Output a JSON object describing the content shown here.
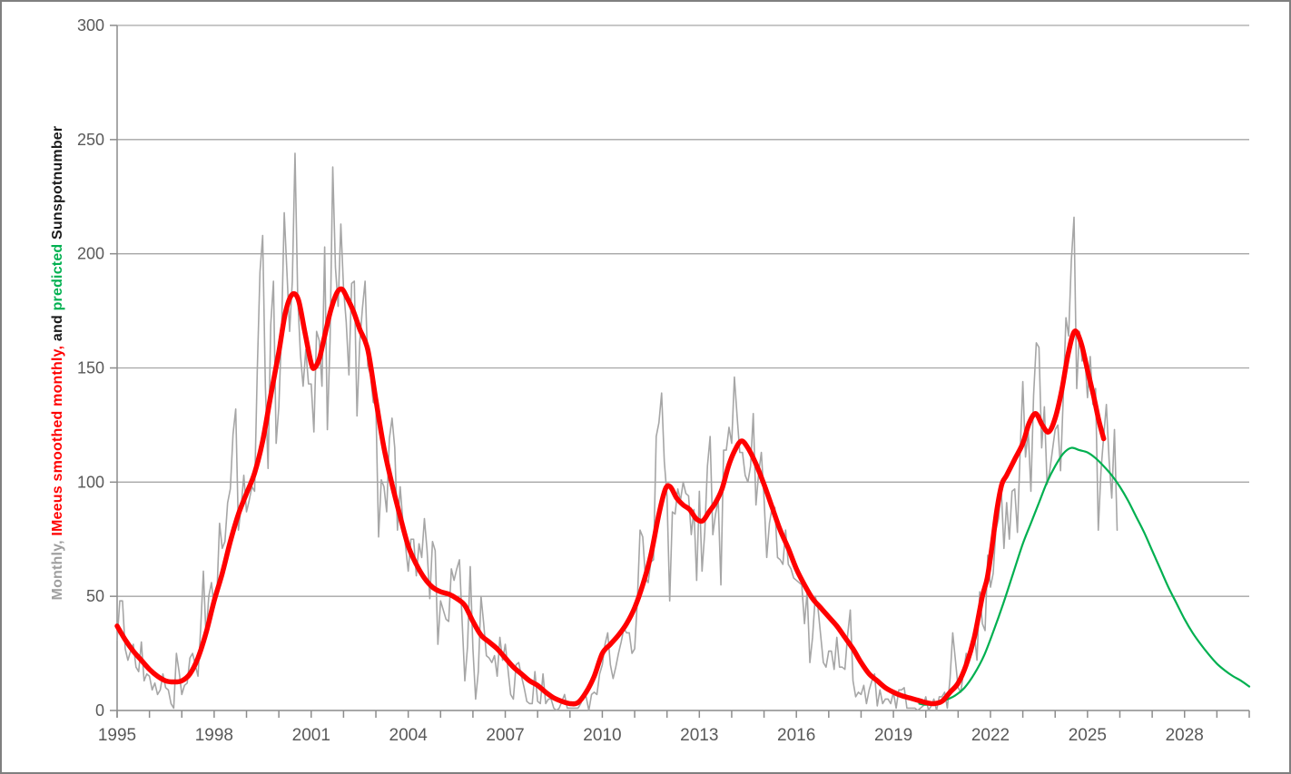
{
  "chart_data": {
    "type": "line",
    "title": "",
    "xlabel": "",
    "ylabel": "Monthly, IMeeus smoothed monthly, and predicted Sunspotnumber",
    "ylabel_segments": [
      {
        "text": "Monthly, ",
        "color": "#9e9e9e"
      },
      {
        "text": "IMeeus smoothed monthly, ",
        "color": "#ff0000"
      },
      {
        "text": "and ",
        "color": "#1a1a1a"
      },
      {
        "text": "predicted ",
        "color": "#00b050"
      },
      {
        "text": "Sunspotnumber",
        "color": "#1a1a1a"
      }
    ],
    "grid": true,
    "legend_position": "none (legend encoded in y-axis label colors)",
    "x_axis": {
      "min": 1995,
      "max": 2030,
      "tick_step": 1,
      "label_step": 3,
      "tick_labels": [
        "1995",
        "1998",
        "2001",
        "2004",
        "2007",
        "2010",
        "2013",
        "2016",
        "2019",
        "2022",
        "2025",
        "2028"
      ]
    },
    "y_axis": {
      "min": 0,
      "max": 300,
      "tick_step": 50,
      "tick_labels": [
        "0",
        "50",
        "100",
        "150",
        "200",
        "250",
        "300"
      ]
    },
    "colors": {
      "monthly": "#a6a6a6",
      "smoothed": "#ff0000",
      "predicted": "#00b050",
      "grid": "#a6a6a6",
      "axis": "#8c8c8c",
      "tick_text": "#595959"
    },
    "series": [
      {
        "name": "Monthly sunspot number",
        "color": "#a6a6a6",
        "width": 1.6,
        "smooth": false,
        "start_year": 1995.0,
        "step_years": 0.0833333,
        "values": [
          31,
          48,
          48,
          27,
          22,
          26,
          29,
          19,
          17,
          30,
          13,
          16,
          15,
          9,
          12,
          7,
          9,
          16,
          10,
          9,
          3,
          1,
          25,
          17,
          7,
          11,
          12,
          23,
          25,
          20,
          15,
          36,
          61,
          32,
          50,
          56,
          45,
          50,
          82,
          71,
          74,
          91,
          97,
          121,
          132,
          79,
          89,
          103,
          87,
          92,
          98,
          96,
          149,
          192,
          208,
          142,
          106,
          169,
          188,
          117,
          133,
          166,
          218,
          192,
          166,
          188,
          244,
          181,
          156,
          142,
          158,
          143,
          143,
          122,
          166,
          162,
          142,
          203,
          123,
          162,
          238,
          194,
          177,
          213,
          185,
          170,
          147,
          187,
          188,
          129,
          161,
          176,
          188,
          151,
          147,
          135,
          134,
          76,
          101,
          98,
          87,
          119,
          128,
          115,
          79,
          98,
          83,
          72,
          61,
          75,
          75,
          59,
          73,
          67,
          84,
          70,
          49,
          74,
          70,
          29,
          48,
          44,
          40,
          39,
          62,
          57,
          62,
          66,
          39,
          13,
          28,
          63,
          27,
          5,
          17,
          50,
          38,
          24,
          23,
          21,
          24,
          15,
          32,
          22,
          29,
          18,
          7,
          5,
          20,
          21,
          15,
          10,
          4,
          3,
          3,
          17,
          4,
          3,
          16,
          3,
          5,
          5,
          1,
          0,
          1,
          4,
          7,
          1,
          1,
          1,
          1,
          1,
          3,
          6,
          6,
          0,
          7,
          8,
          7,
          16,
          20,
          29,
          34,
          20,
          14,
          19,
          25,
          30,
          36,
          34,
          34,
          25,
          27,
          48,
          79,
          76,
          58,
          56,
          65,
          66,
          120,
          126,
          139,
          109,
          94,
          48,
          87,
          86,
          97,
          92,
          100,
          95,
          94,
          77,
          88,
          57,
          96,
          61,
          78,
          107,
          120,
          77,
          86,
          92,
          55,
          114,
          114,
          124,
          117,
          146,
          129,
          113,
          113,
          103,
          100,
          107,
          130,
          90,
          104,
          113,
          93,
          67,
          82,
          89,
          89,
          67,
          66,
          64,
          79,
          64,
          62,
          58,
          57,
          56,
          55,
          38,
          52,
          21,
          32,
          50,
          45,
          33,
          21,
          19,
          26,
          26,
          18,
          32,
          19,
          19,
          18,
          33,
          44,
          13,
          6,
          8,
          7,
          11,
          3,
          9,
          13,
          16,
          2,
          9,
          3,
          5,
          5,
          3,
          8,
          1,
          9,
          9,
          10,
          1,
          1,
          1,
          1,
          0,
          1,
          2,
          6,
          0,
          2,
          5,
          0,
          6,
          6,
          8,
          1,
          14,
          34,
          22,
          10,
          8,
          17,
          25,
          21,
          25,
          34,
          22,
          52,
          38,
          35,
          68,
          54,
          60,
          79,
          84,
          97,
          71,
          91,
          75,
          96,
          97,
          78,
          113,
          144,
          111,
          123,
          96,
          138,
          161,
          159,
          115,
          133,
          99,
          105,
          114,
          123,
          125,
          105,
          137,
          172,
          164,
          197,
          216,
          141,
          166,
          153,
          155,
          137,
          155,
          134,
          141,
          79,
          105,
          120,
          134,
          110,
          93,
          123,
          79
        ]
      },
      {
        "name": "Meeus smoothed monthly sunspot number",
        "color": "#ff0000",
        "width": 5.5,
        "smooth": true,
        "points": [
          [
            1995.0,
            37
          ],
          [
            1995.25,
            31
          ],
          [
            1995.5,
            26
          ],
          [
            1995.75,
            22
          ],
          [
            1996.0,
            18
          ],
          [
            1996.25,
            15
          ],
          [
            1996.5,
            13
          ],
          [
            1996.75,
            12.5
          ],
          [
            1997.0,
            13
          ],
          [
            1997.25,
            16
          ],
          [
            1997.5,
            23
          ],
          [
            1997.75,
            34
          ],
          [
            1998.0,
            48
          ],
          [
            1998.25,
            60
          ],
          [
            1998.5,
            74
          ],
          [
            1998.75,
            86
          ],
          [
            1999.0,
            95
          ],
          [
            1999.25,
            104
          ],
          [
            1999.5,
            118
          ],
          [
            1999.75,
            138
          ],
          [
            2000.0,
            157
          ],
          [
            2000.2,
            174
          ],
          [
            2000.4,
            182
          ],
          [
            2000.6,
            180
          ],
          [
            2000.8,
            166
          ],
          [
            2001.0,
            152
          ],
          [
            2001.1,
            150
          ],
          [
            2001.25,
            154
          ],
          [
            2001.4,
            163
          ],
          [
            2001.6,
            175
          ],
          [
            2001.8,
            183
          ],
          [
            2001.95,
            184.5
          ],
          [
            2002.1,
            181
          ],
          [
            2002.3,
            175
          ],
          [
            2002.5,
            167
          ],
          [
            2002.75,
            158
          ],
          [
            2003.0,
            136
          ],
          [
            2003.25,
            115
          ],
          [
            2003.5,
            99
          ],
          [
            2003.75,
            85
          ],
          [
            2004.0,
            72
          ],
          [
            2004.25,
            64
          ],
          [
            2004.5,
            58
          ],
          [
            2004.75,
            54
          ],
          [
            2005.0,
            52
          ],
          [
            2005.25,
            51
          ],
          [
            2005.5,
            49
          ],
          [
            2005.75,
            46
          ],
          [
            2006.0,
            39
          ],
          [
            2006.25,
            33
          ],
          [
            2006.5,
            30
          ],
          [
            2006.75,
            27
          ],
          [
            2007.0,
            23
          ],
          [
            2007.25,
            19
          ],
          [
            2007.5,
            16
          ],
          [
            2007.75,
            13
          ],
          [
            2008.0,
            11
          ],
          [
            2008.25,
            8
          ],
          [
            2008.5,
            5.5
          ],
          [
            2008.75,
            4
          ],
          [
            2009.0,
            3
          ],
          [
            2009.25,
            3.5
          ],
          [
            2009.5,
            8
          ],
          [
            2009.75,
            15
          ],
          [
            2010.0,
            25
          ],
          [
            2010.25,
            29
          ],
          [
            2010.5,
            33
          ],
          [
            2010.75,
            38
          ],
          [
            2011.0,
            45
          ],
          [
            2011.25,
            55
          ],
          [
            2011.5,
            68
          ],
          [
            2011.75,
            86
          ],
          [
            2011.95,
            97
          ],
          [
            2012.1,
            98
          ],
          [
            2012.3,
            93
          ],
          [
            2012.5,
            90
          ],
          [
            2012.7,
            88
          ],
          [
            2012.9,
            84
          ],
          [
            2013.1,
            83
          ],
          [
            2013.3,
            87
          ],
          [
            2013.5,
            91
          ],
          [
            2013.7,
            97
          ],
          [
            2013.9,
            107
          ],
          [
            2014.1,
            114
          ],
          [
            2014.3,
            118
          ],
          [
            2014.5,
            115
          ],
          [
            2014.75,
            108
          ],
          [
            2015.0,
            99
          ],
          [
            2015.25,
            89
          ],
          [
            2015.5,
            79
          ],
          [
            2015.75,
            71
          ],
          [
            2016.0,
            62
          ],
          [
            2016.25,
            55
          ],
          [
            2016.5,
            49
          ],
          [
            2016.75,
            45
          ],
          [
            2017.0,
            41
          ],
          [
            2017.25,
            37
          ],
          [
            2017.5,
            32
          ],
          [
            2017.75,
            27
          ],
          [
            2018.0,
            21
          ],
          [
            2018.25,
            16
          ],
          [
            2018.5,
            13
          ],
          [
            2018.75,
            10
          ],
          [
            2019.0,
            8
          ],
          [
            2019.25,
            6.5
          ],
          [
            2019.5,
            5.5
          ],
          [
            2019.75,
            4.5
          ],
          [
            2020.0,
            3.5
          ],
          [
            2020.25,
            3
          ],
          [
            2020.5,
            4
          ],
          [
            2020.75,
            8
          ],
          [
            2021.0,
            12
          ],
          [
            2021.25,
            20
          ],
          [
            2021.5,
            32
          ],
          [
            2021.75,
            50
          ],
          [
            2021.9,
            58
          ],
          [
            2022.05,
            72
          ],
          [
            2022.2,
            88
          ],
          [
            2022.35,
            99
          ],
          [
            2022.5,
            103
          ],
          [
            2022.75,
            110
          ],
          [
            2023.0,
            117
          ],
          [
            2023.2,
            126
          ],
          [
            2023.4,
            130
          ],
          [
            2023.6,
            125
          ],
          [
            2023.8,
            122
          ],
          [
            2024.0,
            128
          ],
          [
            2024.2,
            140
          ],
          [
            2024.4,
            156
          ],
          [
            2024.6,
            166
          ],
          [
            2024.8,
            161
          ],
          [
            2025.0,
            149
          ],
          [
            2025.2,
            137
          ],
          [
            2025.35,
            127
          ],
          [
            2025.5,
            119
          ]
        ]
      },
      {
        "name": "Predicted sunspot number",
        "color": "#00b050",
        "width": 2.2,
        "smooth": true,
        "points": [
          [
            2019.8,
            3
          ],
          [
            2020.0,
            2.5
          ],
          [
            2020.3,
            3
          ],
          [
            2020.6,
            4.5
          ],
          [
            2020.9,
            6.5
          ],
          [
            2021.2,
            10
          ],
          [
            2021.5,
            16
          ],
          [
            2021.8,
            24
          ],
          [
            2022.1,
            35
          ],
          [
            2022.4,
            47
          ],
          [
            2022.7,
            60
          ],
          [
            2023.0,
            73
          ],
          [
            2023.25,
            82
          ],
          [
            2023.5,
            91
          ],
          [
            2023.75,
            100
          ],
          [
            2024.0,
            107
          ],
          [
            2024.25,
            112.5
          ],
          [
            2024.5,
            115
          ],
          [
            2024.75,
            114
          ],
          [
            2025.0,
            113
          ],
          [
            2025.25,
            110.5
          ],
          [
            2025.5,
            107
          ],
          [
            2025.75,
            103
          ],
          [
            2026.0,
            98
          ],
          [
            2026.25,
            92
          ],
          [
            2026.5,
            85
          ],
          [
            2026.75,
            78
          ],
          [
            2027.0,
            70
          ],
          [
            2027.25,
            62
          ],
          [
            2027.5,
            54
          ],
          [
            2027.75,
            47
          ],
          [
            2028.0,
            40
          ],
          [
            2028.25,
            34
          ],
          [
            2028.5,
            29
          ],
          [
            2028.75,
            24.5
          ],
          [
            2029.0,
            20.5
          ],
          [
            2029.25,
            17.5
          ],
          [
            2029.5,
            15
          ],
          [
            2029.75,
            13
          ],
          [
            2030.0,
            10.5
          ]
        ]
      }
    ]
  }
}
